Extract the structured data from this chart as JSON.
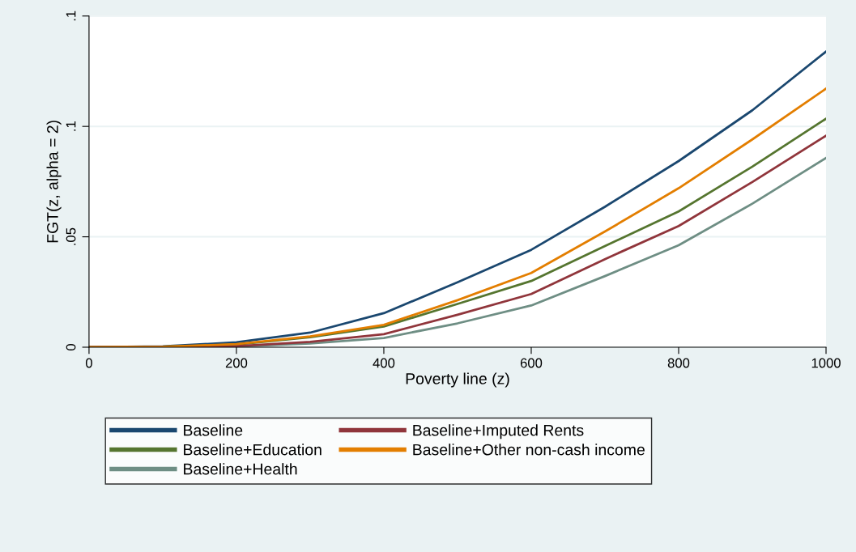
{
  "chart_data": {
    "type": "line",
    "xlabel": "Poverty line (z)",
    "ylabel": "FGT(z, alpha = 2)",
    "x": [
      0,
      100,
      200,
      300,
      400,
      500,
      600,
      700,
      800,
      900,
      1000
    ],
    "series": [
      {
        "name": "Baseline",
        "color": "#1a476f",
        "values": [
          0,
          0.0004,
          0.0022,
          0.0066,
          0.0154,
          0.0294,
          0.0441,
          0.0636,
          0.0843,
          0.1073,
          0.1339
        ]
      },
      {
        "name": "Baseline+Education",
        "color": "#55752f",
        "values": [
          0,
          0.0002,
          0.0012,
          0.0045,
          0.0094,
          0.0196,
          0.03,
          0.0458,
          0.0615,
          0.0818,
          0.1035
        ]
      },
      {
        "name": "Baseline+Health",
        "color": "#6e8e84",
        "values": [
          0,
          0.0,
          0.0003,
          0.0017,
          0.0042,
          0.0108,
          0.0189,
          0.0322,
          0.0462,
          0.065,
          0.0857
        ]
      },
      {
        "name": "Baseline+Imputed Rents",
        "color": "#90353b",
        "values": [
          0,
          0.0001,
          0.0005,
          0.0024,
          0.0059,
          0.0147,
          0.0241,
          0.0399,
          0.0549,
          0.0748,
          0.0958
        ]
      },
      {
        "name": "Baseline+Other non-cash income",
        "color": "#e37e00",
        "values": [
          0,
          0.0002,
          0.0014,
          0.0049,
          0.0101,
          0.0213,
          0.0336,
          0.0524,
          0.072,
          0.0941,
          0.1171
        ]
      }
    ],
    "xlim": [
      0,
      1000
    ],
    "xticks": [
      0,
      200,
      400,
      600,
      800,
      1000
    ],
    "ylim": [
      0,
      0.15
    ],
    "yticks": [
      {
        "value": 0,
        "label": "0"
      },
      {
        "value": 0.05,
        "label": ".05"
      },
      {
        "value": 0.1,
        "label": ".1"
      },
      {
        "value": 0.15,
        "label": ".1"
      }
    ],
    "grid": "y",
    "legend": "bottom",
    "marker": "none",
    "line_style": "solid"
  }
}
